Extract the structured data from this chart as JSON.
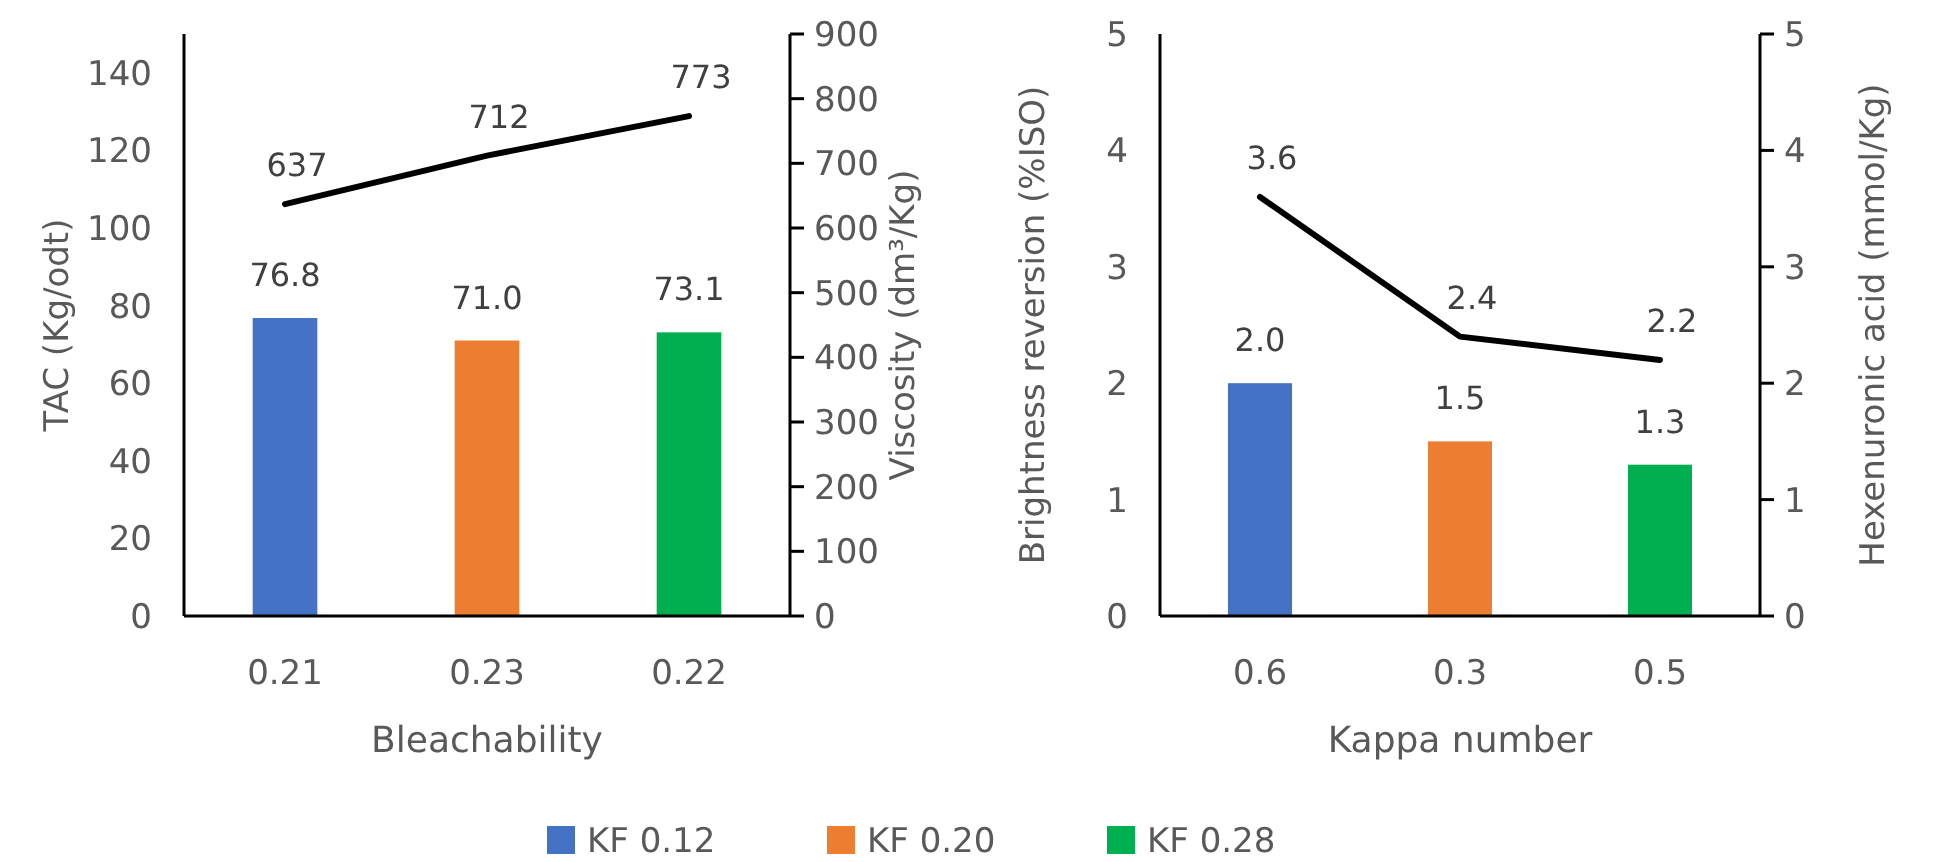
{
  "chart_data": [
    {
      "type": "bar",
      "xlabel": "Bleachability",
      "ylabel": "TAC (Kg/odt)",
      "y2label": "Viscosity (dm³/Kg)",
      "categories": [
        "0.21",
        "0.23",
        "0.22"
      ],
      "series": [
        {
          "name": "KF 0.12",
          "color": "#4472c4",
          "values": [
            76.8,
            null,
            null
          ],
          "value_labels": [
            "76.8",
            null,
            null
          ]
        },
        {
          "name": "KF 0.20",
          "color": "#ed7d31",
          "values": [
            null,
            71.0,
            null
          ],
          "value_labels": [
            null,
            "71.0",
            null
          ]
        },
        {
          "name": "KF 0.28",
          "color": "#00b050",
          "values": [
            null,
            null,
            73.1
          ],
          "value_labels": [
            null,
            null,
            "73.1"
          ]
        },
        {
          "type": "line",
          "axis": "y2",
          "color": "#000000",
          "values": [
            637,
            712,
            773
          ],
          "value_labels": [
            "637",
            "712",
            "773"
          ]
        }
      ],
      "ylim": [
        0,
        150
      ],
      "yticks": [
        0,
        20,
        40,
        60,
        80,
        100,
        120,
        140
      ],
      "y2lim": [
        0,
        900
      ],
      "y2ticks": [
        0,
        100,
        200,
        300,
        400,
        500,
        600,
        700,
        800,
        900
      ],
      "legend": "bottom",
      "grid": false
    },
    {
      "type": "bar",
      "xlabel": "Kappa number",
      "ylabel": "Brightness reversion (%ISO)",
      "y2label": "Hexenuronic acid (mmol/Kg)",
      "categories": [
        "0.6",
        "0.3",
        "0.5"
      ],
      "series": [
        {
          "color": "#4472c4",
          "values": [
            2.0,
            null,
            null
          ],
          "value_labels": [
            "2.0",
            null,
            null
          ]
        },
        {
          "color": "#ed7d31",
          "values": [
            null,
            1.5,
            null
          ],
          "value_labels": [
            null,
            "1.5",
            null
          ]
        },
        {
          "color": "#00b050",
          "values": [
            null,
            null,
            1.3
          ],
          "value_labels": [
            null,
            null,
            "1.3"
          ]
        },
        {
          "type": "line",
          "axis": "y2",
          "color": "#000000",
          "values": [
            3.6,
            2.4,
            2.2
          ],
          "value_labels": [
            "3.6",
            "2.4",
            "2.2"
          ]
        }
      ],
      "ylim": [
        0,
        5
      ],
      "yticks": [
        0,
        1,
        2,
        3,
        4,
        5
      ],
      "y2lim": [
        0,
        5
      ],
      "y2ticks": [
        0,
        1,
        2,
        3,
        4,
        5
      ],
      "legend": false,
      "grid": false
    }
  ]
}
